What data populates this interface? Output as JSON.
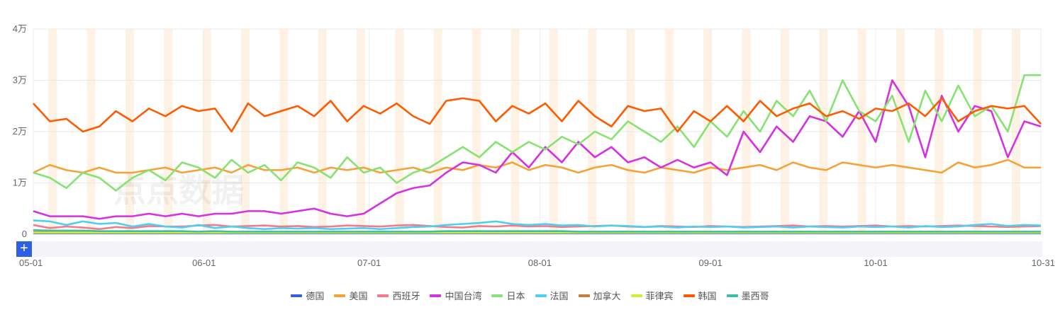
{
  "chart_data": {
    "type": "line",
    "title": "",
    "watermark": "点点数据",
    "xlabel": "",
    "ylabel": "",
    "ylim": [
      0,
      40000
    ],
    "yticks": [
      {
        "v": 0,
        "label": "0"
      },
      {
        "v": 10000,
        "label": "1万"
      },
      {
        "v": 20000,
        "label": "2万"
      },
      {
        "v": 30000,
        "label": "3万"
      },
      {
        "v": 40000,
        "label": "4万"
      }
    ],
    "x_start": "05-01",
    "x_end": "10-31",
    "total_days": 184,
    "sample_step_days": 3,
    "xticks": [
      {
        "day": 0,
        "label": "05-01"
      },
      {
        "day": 31,
        "label": "06-01"
      },
      {
        "day": 61,
        "label": "07-01"
      },
      {
        "day": 92,
        "label": "08-01"
      },
      {
        "day": 123,
        "label": "09-01"
      },
      {
        "day": 153,
        "label": "10-01"
      },
      {
        "day": 183,
        "label": "10-31"
      }
    ],
    "weekend_first_day": 3,
    "grid": true,
    "legend_position": "bottom",
    "unit_multiplier": 10000,
    "series": [
      {
        "name": "德国",
        "color": "#2f5fe3",
        "values": [
          0.02,
          0.02,
          0.02,
          0.02,
          0.02,
          0.02,
          0.02,
          0.02,
          0.02,
          0.02,
          0.02,
          0.02,
          0.02,
          0.02,
          0.02,
          0.02,
          0.02,
          0.02,
          0.02,
          0.02,
          0.02,
          0.02,
          0.02,
          0.02,
          0.02,
          0.02,
          0.02,
          0.02,
          0.02,
          0.02,
          0.02,
          0.02,
          0.02,
          0.02,
          0.02,
          0.02,
          0.02,
          0.02,
          0.02,
          0.02,
          0.02,
          0.02,
          0.02,
          0.02,
          0.02,
          0.02,
          0.02,
          0.02,
          0.02,
          0.02,
          0.02,
          0.02,
          0.02,
          0.02,
          0.02,
          0.02,
          0.02,
          0.02,
          0.02,
          0.02,
          0.02,
          0.02
        ]
      },
      {
        "name": "美国",
        "color": "#f7a035",
        "values": [
          1.2,
          1.35,
          1.25,
          1.2,
          1.3,
          1.2,
          1.2,
          1.25,
          1.3,
          1.2,
          1.25,
          1.3,
          1.2,
          1.35,
          1.25,
          1.25,
          1.3,
          1.2,
          1.3,
          1.25,
          1.3,
          1.2,
          1.25,
          1.3,
          1.2,
          1.3,
          1.25,
          1.35,
          1.3,
          1.4,
          1.25,
          1.35,
          1.3,
          1.2,
          1.3,
          1.35,
          1.25,
          1.2,
          1.3,
          1.25,
          1.2,
          1.3,
          1.25,
          1.3,
          1.35,
          1.25,
          1.4,
          1.3,
          1.25,
          1.4,
          1.35,
          1.3,
          1.35,
          1.3,
          1.25,
          1.2,
          1.4,
          1.3,
          1.35,
          1.45,
          1.3,
          1.3
        ]
      },
      {
        "name": "西班牙",
        "color": "#f47a8a",
        "values": [
          0.18,
          0.12,
          0.15,
          0.13,
          0.1,
          0.14,
          0.12,
          0.16,
          0.15,
          0.15,
          0.17,
          0.18,
          0.15,
          0.16,
          0.17,
          0.15,
          0.16,
          0.14,
          0.15,
          0.17,
          0.16,
          0.15,
          0.17,
          0.18,
          0.16,
          0.14,
          0.13,
          0.16,
          0.15,
          0.17,
          0.15,
          0.16,
          0.14,
          0.15,
          0.16,
          0.17,
          0.15,
          0.14,
          0.16,
          0.15,
          0.14,
          0.16,
          0.15,
          0.14,
          0.15,
          0.16,
          0.17,
          0.15,
          0.16,
          0.15,
          0.16,
          0.17,
          0.15,
          0.16,
          0.15,
          0.16,
          0.17,
          0.16,
          0.15,
          0.14,
          0.15,
          0.16
        ]
      },
      {
        "name": "中国台湾",
        "color": "#d631e0",
        "values": [
          0.45,
          0.35,
          0.35,
          0.35,
          0.3,
          0.35,
          0.35,
          0.4,
          0.35,
          0.4,
          0.35,
          0.4,
          0.4,
          0.45,
          0.45,
          0.4,
          0.45,
          0.5,
          0.4,
          0.35,
          0.4,
          0.6,
          0.8,
          0.9,
          0.95,
          1.2,
          1.4,
          1.35,
          1.2,
          1.6,
          1.3,
          1.7,
          1.4,
          1.8,
          1.5,
          1.7,
          1.4,
          1.5,
          1.3,
          1.45,
          1.3,
          1.4,
          1.15,
          2.0,
          1.6,
          2.1,
          1.8,
          2.3,
          2.2,
          1.9,
          2.4,
          1.8,
          3.0,
          2.5,
          1.5,
          2.7,
          2.0,
          2.5,
          2.4,
          1.5,
          2.2,
          2.1
        ]
      },
      {
        "name": "日本",
        "color": "#86e372",
        "values": [
          1.2,
          1.1,
          0.9,
          1.2,
          1.1,
          0.85,
          1.1,
          1.25,
          1.05,
          1.4,
          1.3,
          1.1,
          1.45,
          1.2,
          1.35,
          1.05,
          1.4,
          1.3,
          1.1,
          1.5,
          1.2,
          1.3,
          1.0,
          1.2,
          1.3,
          1.5,
          1.7,
          1.5,
          1.8,
          1.6,
          1.8,
          1.65,
          1.9,
          1.75,
          2.0,
          1.85,
          2.2,
          2.0,
          1.8,
          2.1,
          1.7,
          2.2,
          1.9,
          2.4,
          2.0,
          2.6,
          2.3,
          2.8,
          2.2,
          3.0,
          2.4,
          2.2,
          2.7,
          1.8,
          2.8,
          2.2,
          2.9,
          2.3,
          2.5,
          2.0,
          3.1,
          3.1
        ]
      },
      {
        "name": "法国",
        "color": "#4dcff0",
        "values": [
          0.27,
          0.25,
          0.18,
          0.25,
          0.2,
          0.22,
          0.15,
          0.2,
          0.15,
          0.13,
          0.18,
          0.12,
          0.15,
          0.12,
          0.1,
          0.12,
          0.11,
          0.12,
          0.1,
          0.11,
          0.12,
          0.1,
          0.12,
          0.14,
          0.15,
          0.18,
          0.2,
          0.22,
          0.25,
          0.2,
          0.18,
          0.2,
          0.17,
          0.18,
          0.15,
          0.17,
          0.16,
          0.14,
          0.15,
          0.13,
          0.15,
          0.14,
          0.15,
          0.13,
          0.14,
          0.15,
          0.13,
          0.15,
          0.14,
          0.13,
          0.15,
          0.14,
          0.15,
          0.13,
          0.16,
          0.14,
          0.15,
          0.18,
          0.2,
          0.16,
          0.18,
          0.17
        ]
      },
      {
        "name": "加拿大",
        "color": "#c08040",
        "values": [
          0.04,
          0.04,
          0.04,
          0.04,
          0.04,
          0.04,
          0.04,
          0.04,
          0.04,
          0.04,
          0.04,
          0.04,
          0.04,
          0.04,
          0.04,
          0.04,
          0.04,
          0.04,
          0.04,
          0.04,
          0.04,
          0.04,
          0.04,
          0.04,
          0.04,
          0.04,
          0.04,
          0.04,
          0.04,
          0.04,
          0.04,
          0.04,
          0.04,
          0.04,
          0.04,
          0.04,
          0.04,
          0.04,
          0.04,
          0.04,
          0.04,
          0.04,
          0.04,
          0.04,
          0.04,
          0.04,
          0.04,
          0.04,
          0.04,
          0.04,
          0.04,
          0.04,
          0.04,
          0.04,
          0.04,
          0.04,
          0.04,
          0.04,
          0.04,
          0.04,
          0.04,
          0.04
        ]
      },
      {
        "name": "菲律宾",
        "color": "#d4ec3c",
        "values": [
          0.03,
          0.03,
          0.03,
          0.03,
          0.03,
          0.03,
          0.03,
          0.03,
          0.03,
          0.03,
          0.03,
          0.03,
          0.03,
          0.03,
          0.03,
          0.03,
          0.03,
          0.03,
          0.03,
          0.03,
          0.03,
          0.03,
          0.03,
          0.03,
          0.03,
          0.03,
          0.03,
          0.03,
          0.03,
          0.03,
          0.03,
          0.03,
          0.03,
          0.03,
          0.03,
          0.03,
          0.03,
          0.03,
          0.03,
          0.03,
          0.03,
          0.03,
          0.03,
          0.03,
          0.03,
          0.03,
          0.03,
          0.03,
          0.03,
          0.03,
          0.03,
          0.03,
          0.03,
          0.03,
          0.03,
          0.03,
          0.03,
          0.03,
          0.03,
          0.03,
          0.03,
          0.03
        ]
      },
      {
        "name": "韩国",
        "color": "#ff5a00",
        "values": [
          2.55,
          2.2,
          2.25,
          2.0,
          2.1,
          2.4,
          2.2,
          2.45,
          2.3,
          2.5,
          2.4,
          2.45,
          2.0,
          2.55,
          2.3,
          2.4,
          2.5,
          2.3,
          2.6,
          2.2,
          2.5,
          2.35,
          2.55,
          2.3,
          2.15,
          2.6,
          2.65,
          2.6,
          2.2,
          2.5,
          2.35,
          2.55,
          2.2,
          2.6,
          2.3,
          2.1,
          2.5,
          2.4,
          2.45,
          2.0,
          2.4,
          2.2,
          2.5,
          2.2,
          2.6,
          2.3,
          2.45,
          2.55,
          2.3,
          2.4,
          2.25,
          2.45,
          2.4,
          2.55,
          2.3,
          2.65,
          2.2,
          2.4,
          2.5,
          2.45,
          2.5,
          2.15
        ]
      },
      {
        "name": "墨西哥",
        "color": "#3cbfa4",
        "values": [
          0.08,
          0.07,
          0.07,
          0.07,
          0.06,
          0.06,
          0.06,
          0.06,
          0.06,
          0.06,
          0.05,
          0.06,
          0.05,
          0.05,
          0.05,
          0.05,
          0.05,
          0.05,
          0.05,
          0.05,
          0.05,
          0.05,
          0.05,
          0.05,
          0.05,
          0.06,
          0.06,
          0.06,
          0.06,
          0.06,
          0.06,
          0.06,
          0.06,
          0.05,
          0.05,
          0.05,
          0.05,
          0.05,
          0.05,
          0.05,
          0.05,
          0.05,
          0.05,
          0.05,
          0.05,
          0.05,
          0.05,
          0.05,
          0.05,
          0.05,
          0.05,
          0.05,
          0.05,
          0.05,
          0.05,
          0.05,
          0.05,
          0.05,
          0.05,
          0.05,
          0.05,
          0.05
        ]
      }
    ]
  },
  "zoom_slider": {
    "expand_label": "+"
  }
}
